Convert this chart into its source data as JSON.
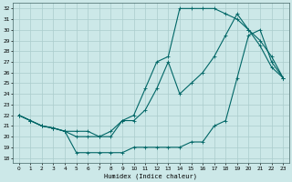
{
  "xlabel": "Humidex (Indice chaleur)",
  "bg_color": "#cce8e8",
  "grid_color": "#aacccc",
  "line_color": "#006666",
  "xlim": [
    -0.5,
    23.5
  ],
  "ylim": [
    17.5,
    32.5
  ],
  "xticks": [
    0,
    1,
    2,
    3,
    4,
    5,
    6,
    7,
    8,
    9,
    10,
    11,
    12,
    13,
    14,
    15,
    16,
    17,
    18,
    19,
    20,
    21,
    22,
    23
  ],
  "yticks": [
    18,
    19,
    20,
    21,
    22,
    23,
    24,
    25,
    26,
    27,
    28,
    29,
    30,
    31,
    32
  ],
  "curve1_x": [
    0,
    1,
    2,
    3,
    4,
    5,
    6,
    7,
    8,
    9,
    10,
    11,
    12,
    13,
    14,
    15,
    16,
    17,
    18,
    19,
    20,
    21,
    22,
    23
  ],
  "curve1_y": [
    22.0,
    21.5,
    21.0,
    20.8,
    20.5,
    18.5,
    18.5,
    18.5,
    18.5,
    18.5,
    19.0,
    19.0,
    19.0,
    19.0,
    19.0,
    19.5,
    19.5,
    21.0,
    21.5,
    25.5,
    29.5,
    30.0,
    27.0,
    25.5
  ],
  "curve2_x": [
    0,
    1,
    2,
    3,
    4,
    5,
    6,
    7,
    8,
    9,
    10,
    11,
    12,
    13,
    14,
    15,
    16,
    17,
    18,
    19,
    20,
    21,
    22,
    23
  ],
  "curve2_y": [
    22.0,
    21.5,
    21.0,
    20.8,
    20.5,
    20.5,
    20.5,
    20.0,
    20.0,
    21.5,
    22.0,
    24.5,
    27.0,
    27.5,
    32.0,
    32.0,
    32.0,
    32.0,
    31.5,
    31.0,
    30.0,
    28.5,
    26.5,
    25.5
  ],
  "curve3_x": [
    0,
    1,
    2,
    3,
    4,
    5,
    6,
    7,
    8,
    9,
    10,
    11,
    12,
    13,
    14,
    15,
    16,
    17,
    18,
    19,
    20,
    21,
    22,
    23
  ],
  "curve3_y": [
    22.0,
    21.5,
    21.0,
    20.8,
    20.5,
    20.0,
    20.0,
    20.0,
    20.5,
    21.5,
    21.5,
    22.5,
    24.5,
    27.0,
    24.0,
    25.0,
    26.0,
    27.5,
    29.5,
    31.5,
    30.0,
    29.0,
    27.5,
    25.5
  ]
}
